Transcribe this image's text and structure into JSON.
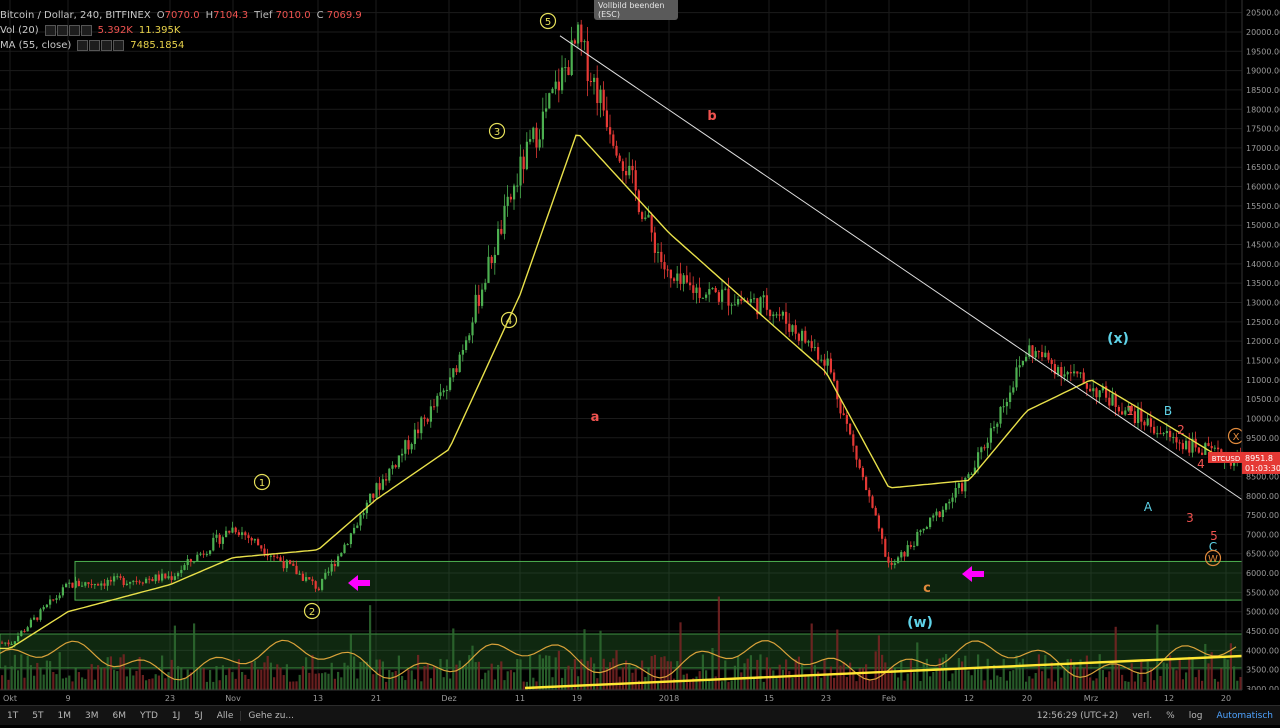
{
  "header": {
    "symbol": "Bitcoin / Dollar, 240, BITFINEX",
    "ohlc": [
      {
        "key": "O",
        "value": "7070.0"
      },
      {
        "key": "H",
        "value": "7104.3"
      },
      {
        "key": "Tief",
        "value": "7010.0"
      },
      {
        "key": "C",
        "value": "7069.9"
      }
    ],
    "vol_label": "Vol (20)",
    "vol_values": [
      "5.392K",
      "11.395K"
    ],
    "ma_label": "MA (55, close)",
    "ma_value": "7485.1854"
  },
  "tooltip": {
    "line1": "Vollbild beenden",
    "line2": "(ESC)"
  },
  "price_tag": {
    "symbol": "BTCUSD",
    "price": "8951.8",
    "countdown": "01:03:30"
  },
  "colors": {
    "up": "#4caf50",
    "down": "#e53935",
    "ma": "#e8e04a",
    "trend": "#e0e0e0",
    "zone": "#2e7d32",
    "wave_red": "#ef5350",
    "wave_cyan": "#5fd3e8",
    "wave_orange": "#e08a3c",
    "arrow": "#ff00ff"
  },
  "chart_data": {
    "type": "line",
    "title": "",
    "symbol": "BTCUSD",
    "exchange": "BITFINEX",
    "timeframe": "240",
    "y_axis": {
      "side": "right",
      "ticks": [
        3000,
        3500,
        4000,
        4500,
        5000,
        5500,
        6000,
        6500,
        7000,
        7500,
        8000,
        8500,
        9000,
        9500,
        10000,
        10500,
        11000,
        11500,
        12000,
        12500,
        13000,
        13500,
        14000,
        14500,
        15000,
        15500,
        16000,
        16500,
        17000,
        17500,
        18000,
        18500,
        19000,
        19500,
        20000,
        20500
      ]
    },
    "ylim": [
      3000,
      20700
    ],
    "x_axis": {
      "ticks": [
        "Okt",
        "9",
        "23",
        "Nov",
        "13",
        "21",
        "Dez",
        "11",
        "19",
        "2018",
        "15",
        "23",
        "Feb",
        "12",
        "20",
        "Mrz",
        "12",
        "20"
      ]
    },
    "grid": true,
    "series": [
      {
        "name": "BTCUSD",
        "x": [
          "Okt",
          "9",
          "23",
          "Nov",
          "13",
          "21",
          "Dez",
          "11",
          "19",
          "2018",
          "15",
          "23",
          "Feb",
          "12",
          "20",
          "Mrz",
          "12",
          "20"
        ],
        "values": [
          4200,
          5700,
          5900,
          7200,
          5600,
          8200,
          10900,
          16500,
          19800,
          13500,
          12900,
          11500,
          6100,
          8500,
          11800,
          10800,
          9500,
          8950
        ]
      },
      {
        "name": "MA (55, close)",
        "x": [
          "Okt",
          "9",
          "23",
          "Nov",
          "13",
          "21",
          "Dez",
          "11",
          "19",
          "2018",
          "15",
          "23",
          "Feb",
          "12",
          "20",
          "Mrz",
          "12",
          "20"
        ],
        "values": [
          4050,
          5000,
          5700,
          6400,
          6600,
          7900,
          9200,
          13200,
          17400,
          14800,
          12500,
          11200,
          8200,
          8400,
          10200,
          11000,
          9800,
          8900
        ]
      }
    ],
    "support_zone": [
      5300,
      6300
    ],
    "annotations": [
      "1",
      "2",
      "3",
      "4",
      "5",
      "a",
      "b",
      "c",
      "(w)",
      "(x)",
      "A",
      "B",
      "C",
      "W",
      "X",
      "1",
      "2",
      "3",
      "4",
      "5"
    ]
  },
  "toolbar": {
    "timeframes": [
      "1T",
      "5T",
      "1M",
      "3M",
      "6M",
      "YTD",
      "1J",
      "5J",
      "Alle"
    ],
    "goto": "Gehe zu...",
    "clock": "12:56:29 (UTC+2)",
    "right": [
      "verl.",
      "%",
      "log",
      "Automatisch"
    ]
  }
}
